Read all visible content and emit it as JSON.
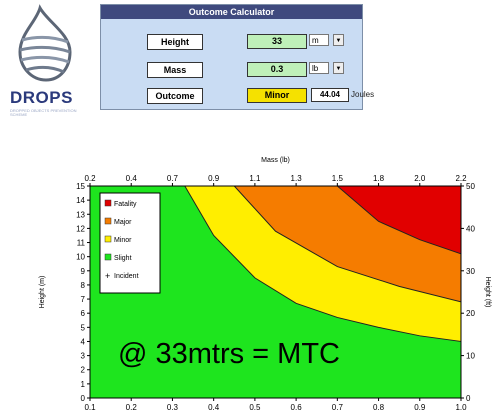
{
  "brand": {
    "name": "DROPS",
    "tagline": "DROPPED OBJECTS PREVENTION SCHEME"
  },
  "calculator": {
    "title": "Outcome Calculator",
    "height": {
      "label": "Height",
      "value": "33",
      "unit": "m"
    },
    "mass": {
      "label": "Mass",
      "value": "0.3",
      "unit": "lb"
    },
    "outcome": {
      "label": "Outcome",
      "value": "Minor",
      "energy": "44.04",
      "energy_unit": "Joules"
    }
  },
  "colors": {
    "fatality": "#e10000",
    "major": "#f57c00",
    "minor": "#ffee00",
    "slight": "#1ee51e"
  },
  "chart_data": {
    "type": "area",
    "title": "",
    "xlabel_top": "Mass (lb)",
    "ylabel_left": "Height (m)",
    "ylabel_right": "Height (ft)",
    "x_bottom_ticks": [
      "0.1",
      "0.2",
      "0.3",
      "0.4",
      "0.5",
      "0.6",
      "0.7",
      "0.8",
      "0.9",
      "1.0"
    ],
    "x_bottom_range": [
      0.1,
      1.0
    ],
    "x_top_ticks": [
      "0.2",
      "0.4",
      "0.7",
      "0.9",
      "1.1",
      "1.3",
      "1.5",
      "1.8",
      "2.0",
      "2.2"
    ],
    "y_left_ticks": [
      "0",
      "1",
      "2",
      "3",
      "4",
      "5",
      "6",
      "7",
      "8",
      "9",
      "10",
      "11",
      "12",
      "13",
      "14",
      "15"
    ],
    "y_left_range": [
      0,
      15
    ],
    "y_right_ticks": [
      "0",
      "10",
      "20",
      "30",
      "40",
      "50"
    ],
    "y_right_range": [
      0,
      50
    ],
    "series": [
      {
        "name": "Fatality",
        "boundary_x": [
          0.7,
          0.8,
          0.9,
          1.0
        ],
        "boundary_y": [
          15,
          12.5,
          11.2,
          10.2
        ]
      },
      {
        "name": "Major",
        "boundary_x": [
          0.45,
          0.55,
          0.7,
          0.85,
          1.0
        ],
        "boundary_y": [
          15,
          11.8,
          9.3,
          7.9,
          6.8
        ]
      },
      {
        "name": "Minor",
        "boundary_x": [
          0.33,
          0.4,
          0.5,
          0.6,
          0.7,
          0.8,
          0.9,
          1.0
        ],
        "boundary_y": [
          15,
          11.5,
          8.5,
          6.7,
          5.7,
          5.0,
          4.4,
          4.0
        ]
      },
      {
        "name": "Slight",
        "boundary_x": [],
        "boundary_y": []
      },
      {
        "name": "Incident",
        "boundary_x": [],
        "boundary_y": []
      }
    ],
    "annotation": "@ 33mtrs = MTC",
    "legend_position": "top-left"
  }
}
